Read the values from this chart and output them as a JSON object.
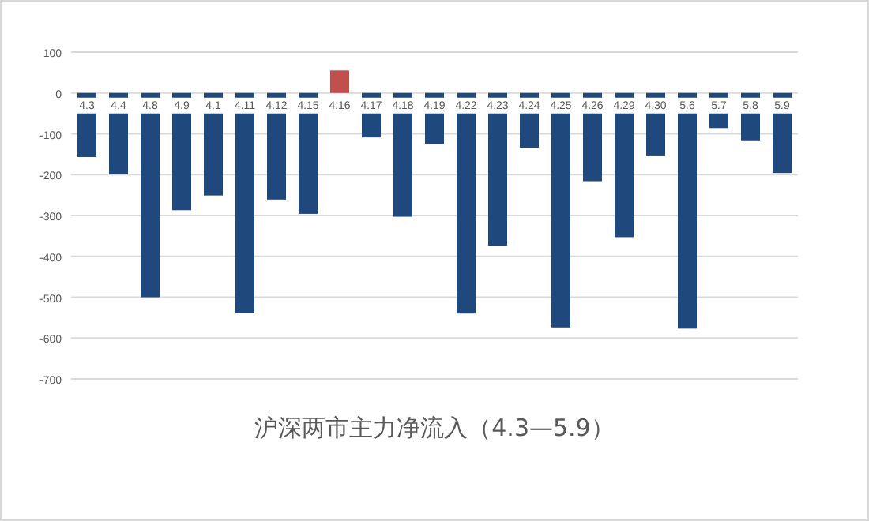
{
  "chart_data": {
    "type": "bar",
    "title": "沪深两市主力净流入（4.3—5.9）",
    "categories": [
      "4.3",
      "4.4",
      "4.8",
      "4.9",
      "4.1",
      "4.11",
      "4.12",
      "4.15",
      "4.16",
      "4.17",
      "4.18",
      "4.19",
      "4.22",
      "4.23",
      "4.24",
      "4.25",
      "4.26",
      "4.29",
      "4.30",
      "5.6",
      "5.7",
      "5.8",
      "5.9"
    ],
    "values": [
      -157,
      -199,
      -500,
      -287,
      -251,
      -539,
      -261,
      -296,
      55,
      -109,
      -303,
      -125,
      -540,
      -374,
      -134,
      -574,
      -216,
      -353,
      -153,
      -577,
      -86,
      -116,
      -196
    ],
    "colors": [
      "#1f497d",
      "#1f497d",
      "#1f497d",
      "#1f497d",
      "#1f497d",
      "#1f497d",
      "#1f497d",
      "#1f497d",
      "#c0504d",
      "#1f497d",
      "#1f497d",
      "#1f497d",
      "#1f497d",
      "#1f497d",
      "#1f497d",
      "#1f497d",
      "#1f497d",
      "#1f497d",
      "#1f497d",
      "#1f497d",
      "#1f497d",
      "#1f497d",
      "#1f497d"
    ],
    "ylim": [
      -700,
      100
    ],
    "yticks": [
      -700,
      -600,
      -500,
      -400,
      -300,
      -200,
      -100,
      0,
      100
    ],
    "grid": "y"
  }
}
